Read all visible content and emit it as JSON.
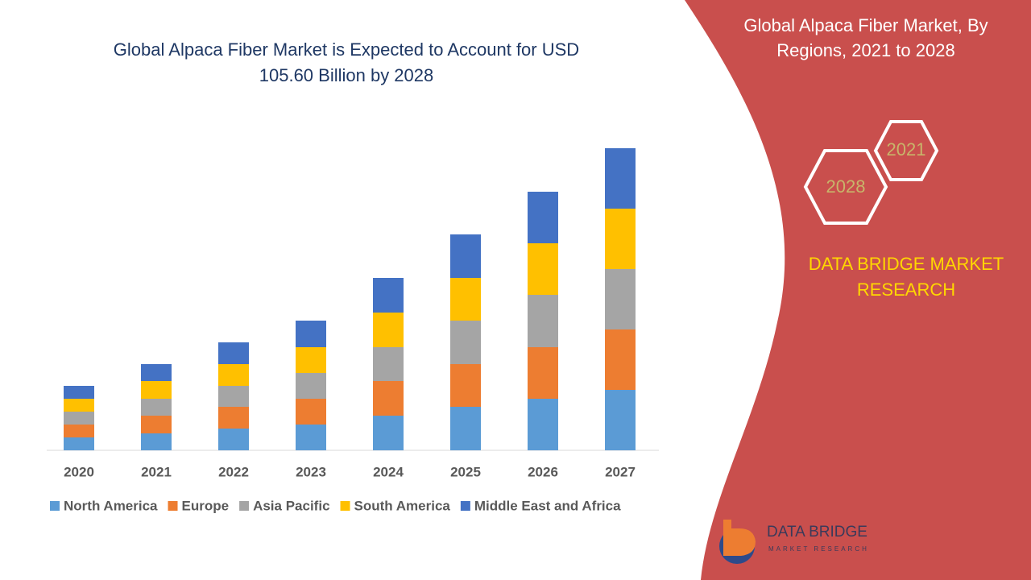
{
  "chart_data": {
    "type": "stacked-bar",
    "title": "Global Alpaca Fiber Market is Expected to Account for USD 105.60 Billion by 2028",
    "categories": [
      "2020",
      "2021",
      "2022",
      "2023",
      "2024",
      "2025",
      "2026",
      "2027"
    ],
    "series": [
      {
        "name": "North America",
        "color": "#5b9bd5",
        "values": [
          16,
          21,
          27,
          32,
          43,
          54,
          64,
          75
        ]
      },
      {
        "name": "Europe",
        "color": "#ed7d31",
        "values": [
          16,
          22,
          27,
          32,
          43,
          53,
          64,
          75
        ]
      },
      {
        "name": "Asia Pacific",
        "color": "#a5a5a5",
        "values": [
          16,
          21,
          26,
          32,
          42,
          54,
          65,
          75
        ]
      },
      {
        "name": "South America",
        "color": "#ffc000",
        "values": [
          16,
          22,
          27,
          32,
          43,
          53,
          64,
          75
        ]
      },
      {
        "name": "Middle East and Africa",
        "color": "#4472c4",
        "values": [
          16,
          21,
          27,
          33,
          43,
          54,
          64,
          75
        ]
      }
    ]
  },
  "side_panel": {
    "title": "Global Alpaca Fiber Market, By Regions, 2021 to 2028",
    "hexagons": [
      "2021",
      "2028"
    ],
    "brand": "DATA BRIDGE MARKET RESEARCH"
  },
  "logo": {
    "name": "DATA BRIDGE",
    "tagline": "MARKET RESEARCH"
  }
}
